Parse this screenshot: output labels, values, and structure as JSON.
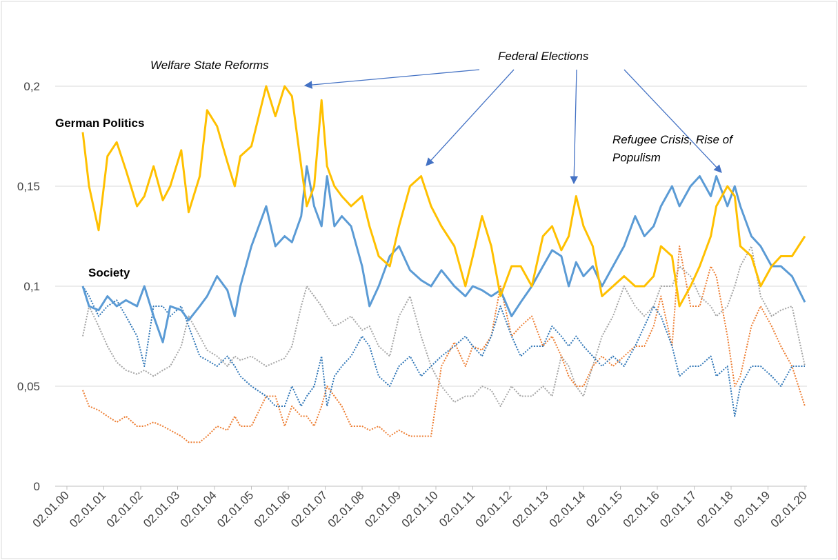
{
  "chart_data": {
    "type": "line",
    "annotations": [
      "Welfare State Reforms",
      "Federal Elections",
      "Refugee Crisis, Rise of Populism"
    ],
    "x": [
      2000.43,
      2000.6,
      2000.86,
      2001.1,
      2001.35,
      2001.6,
      2001.9,
      2002.1,
      2002.35,
      2002.6,
      2002.8,
      2003.1,
      2003.3,
      2003.6,
      2003.8,
      2004.07,
      2004.35,
      2004.55,
      2004.7,
      2005.0,
      2005.4,
      2005.65,
      2005.9,
      2006.1,
      2006.35,
      2006.5,
      2006.7,
      2006.9,
      2007.05,
      2007.25,
      2007.45,
      2007.7,
      2008.0,
      2008.2,
      2008.45,
      2008.75,
      2009.0,
      2009.3,
      2009.6,
      2009.87,
      2010.15,
      2010.5,
      2010.8,
      2011.0,
      2011.25,
      2011.5,
      2011.75,
      2012.05,
      2012.3,
      2012.6,
      2012.9,
      2013.15,
      2013.4,
      2013.6,
      2013.8,
      2014.0,
      2014.25,
      2014.5,
      2014.8,
      2015.1,
      2015.4,
      2015.65,
      2015.9,
      2016.1,
      2016.4,
      2016.6,
      2016.9,
      2017.15,
      2017.45,
      2017.6,
      2017.9,
      2018.1,
      2018.25,
      2018.55,
      2018.8,
      2019.1,
      2019.35,
      2019.65,
      2020.0
    ],
    "series": [
      {
        "name": "German Politics",
        "color": "#ffc000",
        "dashed": false,
        "values": [
          0.177,
          0.15,
          0.128,
          0.165,
          0.172,
          0.158,
          0.14,
          0.145,
          0.16,
          0.143,
          0.15,
          0.168,
          0.137,
          0.155,
          0.188,
          0.18,
          0.162,
          0.15,
          0.165,
          0.17,
          0.2,
          0.185,
          0.2,
          0.195,
          0.16,
          0.14,
          0.15,
          0.193,
          0.16,
          0.15,
          0.145,
          0.14,
          0.145,
          0.13,
          0.115,
          0.11,
          0.13,
          0.15,
          0.155,
          0.14,
          0.13,
          0.12,
          0.1,
          0.115,
          0.135,
          0.12,
          0.095,
          0.11,
          0.11,
          0.1,
          0.125,
          0.13,
          0.118,
          0.125,
          0.145,
          0.13,
          0.12,
          0.095,
          0.1,
          0.105,
          0.1,
          0.1,
          0.105,
          0.12,
          0.115,
          0.09,
          0.1,
          0.11,
          0.125,
          0.14,
          0.15,
          0.145,
          0.12,
          0.115,
          0.1,
          0.11,
          0.115,
          0.115,
          0.125
        ]
      },
      {
        "name": "Society",
        "color": "#5b9bd5",
        "dashed": false,
        "values": [
          0.1,
          0.09,
          0.088,
          0.095,
          0.09,
          0.093,
          0.09,
          0.1,
          0.085,
          0.072,
          0.09,
          0.088,
          0.083,
          0.09,
          0.095,
          0.105,
          0.098,
          0.085,
          0.1,
          0.12,
          0.14,
          0.12,
          0.125,
          0.122,
          0.135,
          0.16,
          0.14,
          0.13,
          0.155,
          0.13,
          0.135,
          0.13,
          0.11,
          0.09,
          0.1,
          0.115,
          0.12,
          0.108,
          0.103,
          0.1,
          0.108,
          0.1,
          0.095,
          0.1,
          0.098,
          0.095,
          0.098,
          0.085,
          0.092,
          0.1,
          0.11,
          0.118,
          0.115,
          0.1,
          0.112,
          0.105,
          0.11,
          0.1,
          0.11,
          0.12,
          0.135,
          0.125,
          0.13,
          0.14,
          0.15,
          0.14,
          0.15,
          0.155,
          0.145,
          0.155,
          0.14,
          0.15,
          0.14,
          0.125,
          0.12,
          0.11,
          0.11,
          0.105,
          0.092
        ]
      },
      {
        "color": "#a5a5a5",
        "dashed": true,
        "values": [
          0.075,
          0.09,
          0.08,
          0.07,
          0.062,
          0.058,
          0.056,
          0.058,
          0.055,
          0.058,
          0.06,
          0.07,
          0.085,
          0.075,
          0.068,
          0.065,
          0.06,
          0.065,
          0.063,
          0.065,
          0.06,
          0.062,
          0.064,
          0.07,
          0.09,
          0.1,
          0.095,
          0.09,
          0.085,
          0.08,
          0.082,
          0.085,
          0.078,
          0.08,
          0.07,
          0.065,
          0.085,
          0.095,
          0.075,
          0.06,
          0.05,
          0.042,
          0.045,
          0.045,
          0.05,
          0.048,
          0.04,
          0.05,
          0.045,
          0.045,
          0.05,
          0.045,
          0.065,
          0.06,
          0.05,
          0.045,
          0.06,
          0.075,
          0.085,
          0.1,
          0.09,
          0.085,
          0.09,
          0.1,
          0.1,
          0.11,
          0.105,
          0.095,
          0.09,
          0.085,
          0.09,
          0.1,
          0.11,
          0.12,
          0.095,
          0.085,
          0.088,
          0.09,
          0.06
        ]
      },
      {
        "color": "#ed7d31",
        "dashed": true,
        "values": [
          0.048,
          0.04,
          0.038,
          0.035,
          0.032,
          0.035,
          0.03,
          0.03,
          0.032,
          0.03,
          0.028,
          0.025,
          0.022,
          0.022,
          0.025,
          0.03,
          0.028,
          0.035,
          0.03,
          0.03,
          0.045,
          0.045,
          0.03,
          0.04,
          0.035,
          0.035,
          0.03,
          0.04,
          0.05,
          0.045,
          0.04,
          0.03,
          0.03,
          0.028,
          0.03,
          0.025,
          0.028,
          0.025,
          0.025,
          0.025,
          0.06,
          0.072,
          0.06,
          0.07,
          0.068,
          0.075,
          0.1,
          0.075,
          0.08,
          0.085,
          0.07,
          0.075,
          0.065,
          0.055,
          0.05,
          0.05,
          0.06,
          0.065,
          0.06,
          0.065,
          0.07,
          0.07,
          0.08,
          0.095,
          0.07,
          0.12,
          0.09,
          0.09,
          0.11,
          0.105,
          0.075,
          0.05,
          0.055,
          0.08,
          0.09,
          0.08,
          0.07,
          0.06,
          0.04
        ]
      },
      {
        "color": "#2e75b6",
        "dashed": true,
        "values": [
          0.1,
          0.095,
          0.085,
          0.09,
          0.093,
          0.085,
          0.075,
          0.06,
          0.09,
          0.09,
          0.085,
          0.09,
          0.08,
          0.065,
          0.063,
          0.06,
          0.065,
          0.06,
          0.055,
          0.05,
          0.045,
          0.04,
          0.04,
          0.05,
          0.04,
          0.045,
          0.05,
          0.065,
          0.04,
          0.055,
          0.06,
          0.065,
          0.075,
          0.07,
          0.055,
          0.05,
          0.06,
          0.065,
          0.055,
          0.06,
          0.065,
          0.07,
          0.075,
          0.07,
          0.065,
          0.075,
          0.09,
          0.075,
          0.065,
          0.07,
          0.07,
          0.08,
          0.075,
          0.07,
          0.075,
          0.07,
          0.065,
          0.06,
          0.065,
          0.06,
          0.07,
          0.08,
          0.09,
          0.085,
          0.07,
          0.055,
          0.06,
          0.06,
          0.065,
          0.055,
          0.06,
          0.035,
          0.05,
          0.06,
          0.06,
          0.055,
          0.05,
          0.06,
          0.06
        ]
      }
    ],
    "xlim": [
      2000,
      2020
    ],
    "xticks": [
      {
        "value": 2000,
        "label": "02.01.00"
      },
      {
        "value": 2001,
        "label": "02.01.01"
      },
      {
        "value": 2002,
        "label": "02.01.02"
      },
      {
        "value": 2003,
        "label": "02.01.03"
      },
      {
        "value": 2004,
        "label": "02.01.04"
      },
      {
        "value": 2005,
        "label": "02.01.05"
      },
      {
        "value": 2006,
        "label": "02.01.06"
      },
      {
        "value": 2007,
        "label": "02.01.07"
      },
      {
        "value": 2008,
        "label": "02.01.08"
      },
      {
        "value": 2009,
        "label": "02.01.09"
      },
      {
        "value": 2010,
        "label": "02.01.10"
      },
      {
        "value": 2011,
        "label": "02.01.11"
      },
      {
        "value": 2012,
        "label": "02.01.12"
      },
      {
        "value": 2013,
        "label": "02.01.13"
      },
      {
        "value": 2014,
        "label": "02.01.14"
      },
      {
        "value": 2015,
        "label": "02.01.15"
      },
      {
        "value": 2016,
        "label": "02.01.16"
      },
      {
        "value": 2017,
        "label": "02.01.17"
      },
      {
        "value": 2018,
        "label": "02.01.18"
      },
      {
        "value": 2019,
        "label": "02.01.19"
      },
      {
        "value": 2020,
        "label": "02.01.20"
      }
    ],
    "ylim": [
      0,
      0.2
    ],
    "yticks": [
      0,
      {
        "value": 0.05,
        "label": "0,05"
      },
      {
        "value": 0.1,
        "label": "0,1"
      },
      {
        "value": 0.15,
        "label": "0,15"
      },
      {
        "value": 0.2,
        "label": "0,2"
      }
    ],
    "grid": true
  }
}
